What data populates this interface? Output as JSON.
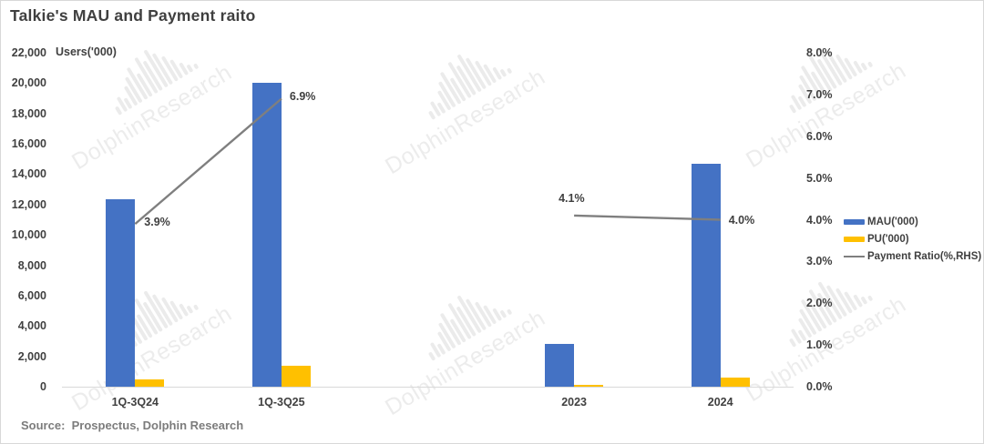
{
  "title": "Talkie's MAU and Payment raito",
  "source": "Source:  Prospectus, Dolphin Research",
  "watermark_text": "DolphinResearch",
  "colors": {
    "mau_blue": "#4472C4",
    "pu_yellow": "#FFC000",
    "ratio_gray": "#7F7F7F",
    "text_dark": "#404040",
    "axis_line": "#D9D9D9"
  },
  "chart_data": {
    "type": "bar",
    "subtype": "clustered bars with secondary-axis line",
    "title": "Talkie's MAU and Payment raito",
    "categories": [
      "1Q-3Q24",
      "1Q-3Q25",
      "",
      "2023",
      "2024"
    ],
    "series": [
      {
        "name": "MAU('000)",
        "type": "bar",
        "axis": "left",
        "color": "#4472C4",
        "values": [
          12350,
          20050,
          null,
          2800,
          14700
        ]
      },
      {
        "name": "PU('000)",
        "type": "bar",
        "axis": "left",
        "color": "#FFC000",
        "values": [
          480,
          1350,
          null,
          120,
          600
        ]
      },
      {
        "name": "Payment Ratio(%,RHS)",
        "type": "line",
        "axis": "right",
        "color": "#7F7F7F",
        "values": [
          3.9,
          6.9,
          null,
          4.1,
          4.0
        ],
        "labels": [
          "3.9%",
          "6.9%",
          null,
          "4.1%",
          "4.0%"
        ],
        "label_offsets": [
          [
            10,
            -9
          ],
          [
            9,
            -9
          ],
          null,
          [
            -17,
            -26
          ],
          [
            9,
            -7
          ]
        ]
      }
    ],
    "left_axis": {
      "title": "Users('000)",
      "min": 0,
      "max": 22000,
      "step": 2000,
      "tick_labels": [
        "22,000",
        "20,000",
        "18,000",
        "16,000",
        "14,000",
        "12,000",
        "10,000",
        "8,000",
        "6,000",
        "4,000",
        "2,000",
        "0"
      ]
    },
    "right_axis": {
      "min": 0,
      "max": 8,
      "step": 1,
      "tick_labels": [
        "8.0%",
        "7.0%",
        "6.0%",
        "5.0%",
        "4.0%",
        "3.0%",
        "2.0%",
        "1.0%",
        "0.0%"
      ]
    },
    "grid": false,
    "legend_position": "right"
  }
}
